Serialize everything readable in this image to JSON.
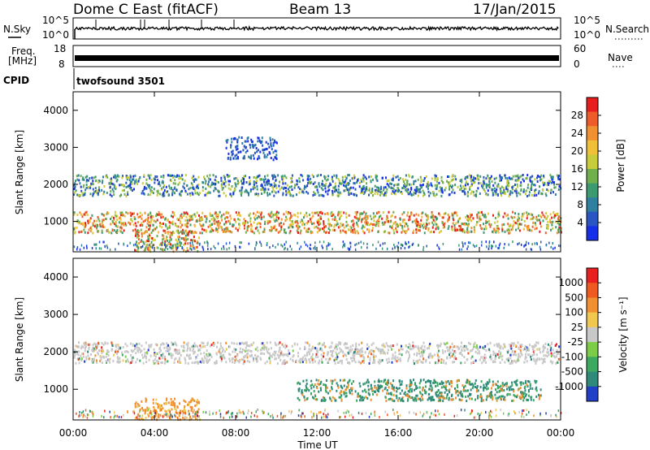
{
  "header": {
    "station": "Dome C East (fitACF)",
    "beam": "Beam 13",
    "date": "17/Jan/2015"
  },
  "panels": {
    "nsky": {
      "label": "N.Sky",
      "tick_top": "10^5",
      "tick_bottom": "10^0",
      "right_label": "N.Search",
      "right_tick_top": "10^5",
      "right_tick_bottom": "10^0"
    },
    "freq": {
      "label_1": "Freq.",
      "label_2": "[MHz]",
      "tick_top": "18",
      "tick_bottom": "8",
      "right_label": "Nave",
      "right_tick_top": "60",
      "right_tick_bottom": "0"
    },
    "cpid": {
      "label": "CPID",
      "program": "twofsound 3501"
    }
  },
  "chart_data": [
    {
      "type": "heatmap",
      "title": "",
      "xlabel": "",
      "ylabel": "Slant Range [km]",
      "xlim": [
        0,
        24
      ],
      "ylim": [
        180,
        4500
      ],
      "y_ticks": [
        "1000",
        "2000",
        "3000",
        "4000"
      ],
      "colorbar": {
        "label": "Power [dB]",
        "ticks": [
          "4",
          "8",
          "12",
          "16",
          "20",
          "24",
          "28"
        ],
        "colors": [
          "#1530e8",
          "#2a56c4",
          "#2e7fa0",
          "#3c9a70",
          "#6fb04c",
          "#c8cc3a",
          "#f0c038",
          "#f09030",
          "#ee5a2a",
          "#e81e1e"
        ]
      },
      "echo_bands": [
        {
          "range_km": 2000,
          "from_h": 0,
          "to_h": 24,
          "level": "mid"
        },
        {
          "range_km": 1000,
          "from_h": 0,
          "to_h": 24,
          "level": "strong"
        },
        {
          "range_km": 500,
          "from_h": 3,
          "to_h": 6.2,
          "level": "strong"
        },
        {
          "range_km": 3000,
          "from_h": 7.5,
          "to_h": 10,
          "level": "weak"
        }
      ]
    },
    {
      "type": "heatmap",
      "title": "",
      "xlabel": "Time UT",
      "ylabel": "Slant Range [km]",
      "xlim": [
        0,
        24
      ],
      "ylim": [
        180,
        4500
      ],
      "x_ticks": [
        "00:00",
        "04:00",
        "08:00",
        "12:00",
        "16:00",
        "20:00",
        "00:00"
      ],
      "y_ticks": [
        "1000",
        "2000",
        "3000",
        "4000"
      ],
      "colorbar": {
        "label": "Velocity [m s⁻¹]",
        "ticks": [
          "1000",
          "500",
          "100",
          "25",
          "-25",
          "-100",
          "-500",
          "-1000"
        ],
        "colors": [
          "#2040c8",
          "#2f8a7a",
          "#3ca860",
          "#7ccc48",
          "#c8c8c8",
          "#f0c850",
          "#f09030",
          "#ee5a20",
          "#e82020"
        ]
      },
      "echo_bands": [
        {
          "range_km": 2000,
          "from_h": 0,
          "to_h": 24,
          "level": "grey"
        },
        {
          "range_km": 1000,
          "from_h": 11,
          "to_h": 23,
          "level": "green"
        },
        {
          "range_km": 500,
          "from_h": 3,
          "to_h": 6.2,
          "level": "orange"
        }
      ]
    }
  ]
}
